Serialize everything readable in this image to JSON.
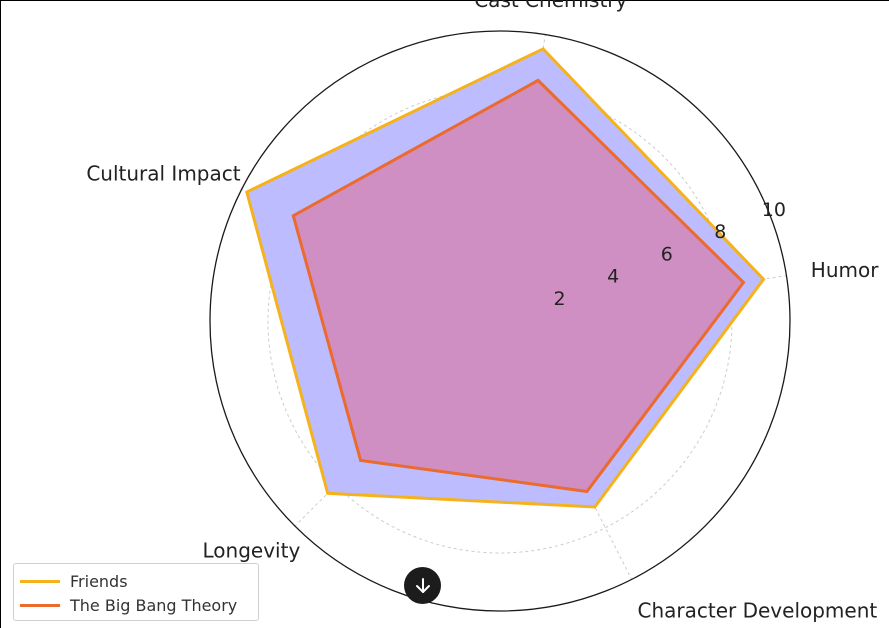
{
  "chart_data": {
    "type": "radar",
    "axes": [
      "Humor",
      "Cast Chemistry",
      "Cultural Impact",
      "Longevity",
      "Character Development"
    ],
    "series": [
      {
        "name": "Friends",
        "values": [
          9.2,
          9.5,
          9.8,
          8.4,
          7.2
        ],
        "color": "#f5b21a",
        "fill": "#b8b8ff"
      },
      {
        "name": "The Big Bang Theory",
        "values": [
          8.5,
          8.4,
          8.0,
          6.8,
          6.6
        ],
        "color": "#ec6a2c",
        "fill": "#d08cc0"
      }
    ],
    "radial_ticks": [
      2,
      4,
      6,
      8,
      10
    ],
    "rlim": [
      0,
      10
    ],
    "grid": true,
    "legend_position": "bottom-left"
  },
  "colors": {
    "outer_circle": "#1a1a1a",
    "grid": "#cccccc",
    "text": "#222222",
    "button": "#1c1c1c"
  },
  "scroll_button": {
    "icon": "arrow-down-icon"
  }
}
